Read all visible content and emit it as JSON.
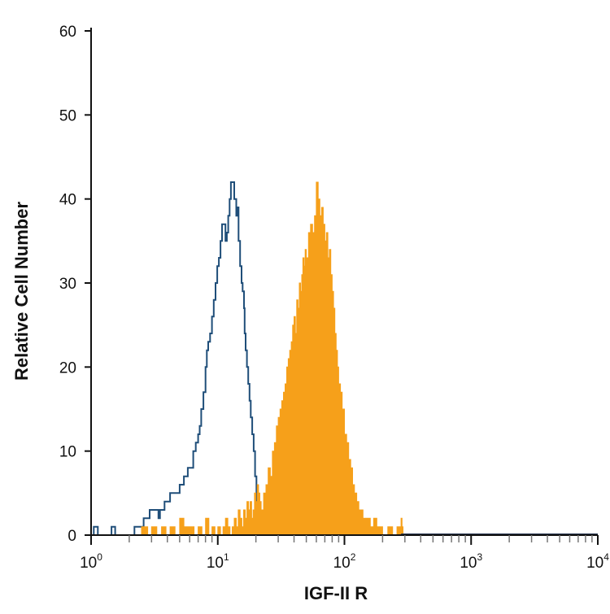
{
  "chart_data": {
    "type": "area",
    "xlabel": "IGF-II R",
    "ylabel": "Relative Cell Number",
    "xscale": "log",
    "xlim": [
      1,
      10000
    ],
    "ylim": [
      0,
      60
    ],
    "yticks": [
      0,
      10,
      20,
      30,
      40,
      50,
      60
    ],
    "xticks": [
      {
        "base": "10",
        "exp": "0",
        "value": 1
      },
      {
        "base": "10",
        "exp": "1",
        "value": 10
      },
      {
        "base": "10",
        "exp": "2",
        "value": 100
      },
      {
        "base": "10",
        "exp": "3",
        "value": 1000
      },
      {
        "base": "10",
        "exp": "4",
        "value": 10000
      }
    ],
    "colors": {
      "isotype": "#1f4e79",
      "stained": "#f6a01a",
      "axis": "#111111"
    },
    "series": [
      {
        "style": "outline",
        "color": "#1f4e79",
        "points": [
          [
            1.0,
            0
          ],
          [
            1.05,
            1
          ],
          [
            1.1,
            1
          ],
          [
            1.13,
            0
          ],
          [
            1.4,
            0
          ],
          [
            1.45,
            1
          ],
          [
            1.5,
            1
          ],
          [
            1.55,
            0
          ],
          [
            2.1,
            0
          ],
          [
            2.2,
            1
          ],
          [
            2.5,
            1
          ],
          [
            2.6,
            2
          ],
          [
            2.8,
            2
          ],
          [
            2.9,
            3
          ],
          [
            3.2,
            3
          ],
          [
            3.4,
            2
          ],
          [
            3.5,
            3
          ],
          [
            3.7,
            3
          ],
          [
            3.8,
            4
          ],
          [
            4.0,
            4
          ],
          [
            4.2,
            5
          ],
          [
            4.7,
            5
          ],
          [
            5.0,
            6
          ],
          [
            5.4,
            7
          ],
          [
            5.8,
            8
          ],
          [
            6.2,
            8
          ],
          [
            6.4,
            10
          ],
          [
            6.7,
            11
          ],
          [
            7.0,
            12
          ],
          [
            7.2,
            13
          ],
          [
            7.4,
            15
          ],
          [
            7.7,
            17
          ],
          [
            8.0,
            20
          ],
          [
            8.2,
            22
          ],
          [
            8.4,
            23
          ],
          [
            8.7,
            24
          ],
          [
            9.0,
            26
          ],
          [
            9.3,
            28
          ],
          [
            9.6,
            30
          ],
          [
            9.9,
            32
          ],
          [
            10.2,
            33
          ],
          [
            10.5,
            35
          ],
          [
            10.8,
            37
          ],
          [
            11.2,
            37
          ],
          [
            11.5,
            35
          ],
          [
            11.8,
            36
          ],
          [
            12.1,
            38
          ],
          [
            12.4,
            40
          ],
          [
            12.7,
            42
          ],
          [
            13.3,
            42
          ],
          [
            13.5,
            40
          ],
          [
            14.0,
            38
          ],
          [
            14.3,
            39
          ],
          [
            14.6,
            35
          ],
          [
            15.0,
            32
          ],
          [
            15.4,
            30
          ],
          [
            15.7,
            29
          ],
          [
            16.1,
            27
          ],
          [
            16.3,
            24
          ],
          [
            16.6,
            22
          ],
          [
            17.0,
            20
          ],
          [
            17.4,
            18
          ],
          [
            17.8,
            16
          ],
          [
            18.2,
            14
          ],
          [
            18.7,
            12
          ],
          [
            19.2,
            10
          ],
          [
            19.7,
            7
          ],
          [
            20.2,
            4
          ],
          [
            20.7,
            2
          ],
          [
            21.5,
            1
          ],
          [
            22.5,
            0
          ]
        ]
      },
      {
        "style": "filled",
        "color": "#f6a01a",
        "points": [
          [
            2.2,
            0
          ],
          [
            2.5,
            1
          ],
          [
            2.8,
            0
          ],
          [
            3.0,
            1
          ],
          [
            3.3,
            0
          ],
          [
            3.6,
            1
          ],
          [
            3.9,
            0
          ],
          [
            4.2,
            1
          ],
          [
            4.6,
            0
          ],
          [
            5.0,
            2
          ],
          [
            5.4,
            1
          ],
          [
            6.0,
            1
          ],
          [
            6.5,
            0
          ],
          [
            7.0,
            1
          ],
          [
            7.5,
            0
          ],
          [
            8.0,
            2
          ],
          [
            8.5,
            0
          ],
          [
            9.0,
            1
          ],
          [
            9.5,
            0
          ],
          [
            10.0,
            1
          ],
          [
            10.5,
            0
          ],
          [
            11.0,
            1
          ],
          [
            11.5,
            2
          ],
          [
            12.0,
            1
          ],
          [
            12.5,
            0
          ],
          [
            13.0,
            1
          ],
          [
            13.5,
            2
          ],
          [
            14.0,
            1
          ],
          [
            14.5,
            3
          ],
          [
            15.0,
            2
          ],
          [
            15.5,
            1
          ],
          [
            16.0,
            3
          ],
          [
            16.5,
            2
          ],
          [
            17.0,
            4
          ],
          [
            17.5,
            3
          ],
          [
            18.0,
            4
          ],
          [
            18.5,
            2
          ],
          [
            19.0,
            3
          ],
          [
            19.5,
            5
          ],
          [
            20.0,
            4
          ],
          [
            20.5,
            6
          ],
          [
            21.0,
            5
          ],
          [
            21.5,
            4
          ],
          [
            22.0,
            3
          ],
          [
            23.0,
            5
          ],
          [
            24.0,
            6
          ],
          [
            25.0,
            8
          ],
          [
            26.0,
            7
          ],
          [
            27.0,
            10
          ],
          [
            28.0,
            11
          ],
          [
            29.0,
            13
          ],
          [
            30.0,
            14
          ],
          [
            31.0,
            15
          ],
          [
            32.0,
            16
          ],
          [
            33.0,
            17
          ],
          [
            34.0,
            18
          ],
          [
            35.0,
            20
          ],
          [
            36.0,
            21
          ],
          [
            37.0,
            22
          ],
          [
            38.0,
            23
          ],
          [
            39.0,
            25
          ],
          [
            40.0,
            26
          ],
          [
            41.0,
            24
          ],
          [
            42.0,
            28
          ],
          [
            43.0,
            27
          ],
          [
            44.0,
            30
          ],
          [
            45.0,
            29
          ],
          [
            46.0,
            31
          ],
          [
            47.0,
            33
          ],
          [
            48.0,
            32
          ],
          [
            49.0,
            34
          ],
          [
            50.0,
            33
          ],
          [
            52.0,
            36
          ],
          [
            54.0,
            37
          ],
          [
            56.0,
            36
          ],
          [
            58.0,
            38
          ],
          [
            60.0,
            42
          ],
          [
            62.0,
            40
          ],
          [
            64.0,
            38
          ],
          [
            66.0,
            39
          ],
          [
            68.0,
            37
          ],
          [
            70.0,
            35
          ],
          [
            72.0,
            36
          ],
          [
            74.0,
            33
          ],
          [
            76.0,
            34
          ],
          [
            78.0,
            31
          ],
          [
            80.0,
            29
          ],
          [
            82.0,
            27
          ],
          [
            84.0,
            24
          ],
          [
            86.0,
            22
          ],
          [
            88.0,
            20
          ],
          [
            90.0,
            18
          ],
          [
            93.0,
            17
          ],
          [
            96.0,
            15
          ],
          [
            100.0,
            12
          ],
          [
            104.0,
            11
          ],
          [
            108.0,
            9
          ],
          [
            112.0,
            8
          ],
          [
            116.0,
            6
          ],
          [
            120.0,
            5
          ],
          [
            125.0,
            4
          ],
          [
            130.0,
            3
          ],
          [
            140.0,
            2
          ],
          [
            150.0,
            2
          ],
          [
            160.0,
            1
          ],
          [
            170.0,
            2
          ],
          [
            180.0,
            1
          ],
          [
            190.0,
            1
          ],
          [
            200.0,
            0
          ],
          [
            220.0,
            1
          ],
          [
            240.0,
            0
          ],
          [
            260.0,
            1
          ],
          [
            280.0,
            2
          ],
          [
            285.0,
            1
          ],
          [
            290.0,
            0
          ]
        ]
      }
    ],
    "grid": false,
    "legend": "none"
  }
}
